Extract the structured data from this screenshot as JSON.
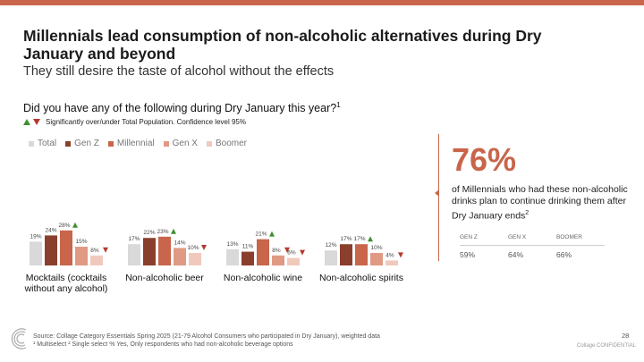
{
  "header": {
    "title": "Millennials lead consumption of non-alcoholic alternatives during Dry January and beyond",
    "subtitle": "They still desire the taste of alcohol without the effects"
  },
  "question": {
    "text": "Did you have any of the following during Dry January this year?",
    "footnote_mark": "1"
  },
  "significance_note": "Significantly over/under Total Population. Confidence level 95%",
  "colors": {
    "accent": "#c8654a",
    "up_arrow": "#3f8f2f",
    "down_arrow": "#b33a2e"
  },
  "chart_data": {
    "type": "bar",
    "categories": [
      "Mocktails (cocktails without any alcohol)",
      "Non-alcoholic beer",
      "Non-alcoholic wine",
      "Non-alcoholic spirits"
    ],
    "category_lines": [
      [
        "Mocktails (cocktails",
        "without any alcohol)"
      ],
      [
        "Non-alcoholic beer"
      ],
      [
        "Non-alcoholic wine"
      ],
      [
        "Non-alcoholic spirits"
      ]
    ],
    "series": [
      {
        "name": "Total",
        "color": "#d9d9d9",
        "values": [
          19,
          17,
          13,
          12
        ],
        "sig": [
          "",
          "",
          "",
          ""
        ]
      },
      {
        "name": "Gen Z",
        "color": "#8a3f2d",
        "values": [
          24,
          22,
          11,
          17
        ],
        "sig": [
          "",
          "",
          "",
          ""
        ]
      },
      {
        "name": "Millennial",
        "color": "#c8654a",
        "values": [
          28,
          23,
          21,
          17
        ],
        "sig": [
          "up",
          "up",
          "up",
          "up"
        ]
      },
      {
        "name": "Gen X",
        "color": "#e09a84",
        "values": [
          15,
          14,
          8,
          10
        ],
        "sig": [
          "",
          "",
          "down",
          ""
        ]
      },
      {
        "name": "Boomer",
        "color": "#f1c9bc",
        "values": [
          8,
          10,
          6,
          4
        ],
        "sig": [
          "down",
          "down",
          "down",
          "down"
        ]
      }
    ],
    "value_suffix": "%",
    "ylim": [
      0,
      30
    ]
  },
  "callout": {
    "percent": "76%",
    "text": "of Millennials who had these non-alcoholic drinks plan to continue drinking them after Dry January ends",
    "footnote_mark": "2",
    "table": {
      "headers": [
        "GEN Z",
        "GEN X",
        "BOOMER"
      ],
      "values": [
        "59%",
        "64%",
        "66%"
      ]
    }
  },
  "footer": {
    "source": "Source: Collage Category Essentials Spring 2025 (21-79 Alcohol Consumers who participated in Dry January), weighted data",
    "notes": "¹ Multiselect ² Single select % Yes, Only respondents who had non-alcoholic beverage options",
    "page": "28",
    "confidential": "Collage CONFIDENTIAL"
  }
}
